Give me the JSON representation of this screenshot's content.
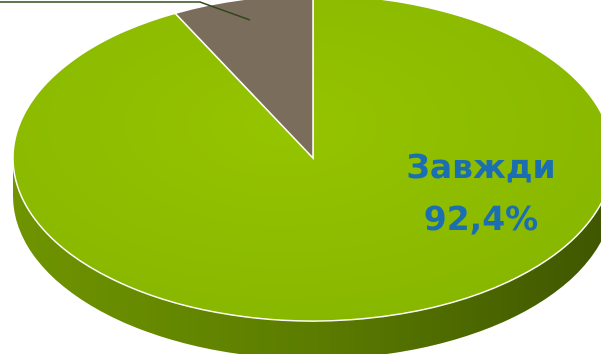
{
  "chart_data": {
    "type": "pie",
    "style": "3d",
    "slices": [
      {
        "label": "Завжди",
        "value": 92.4,
        "value_text": "92,4%",
        "color": "#8dbd00",
        "side_color": "#5a7a00"
      },
      {
        "label": "",
        "value": 7.6,
        "value_text": "",
        "color": "#7b6d5c",
        "side_color": "#4e4538"
      }
    ],
    "label_color": "#1b6fb0",
    "leader_line_color": "#2e4a1c"
  }
}
